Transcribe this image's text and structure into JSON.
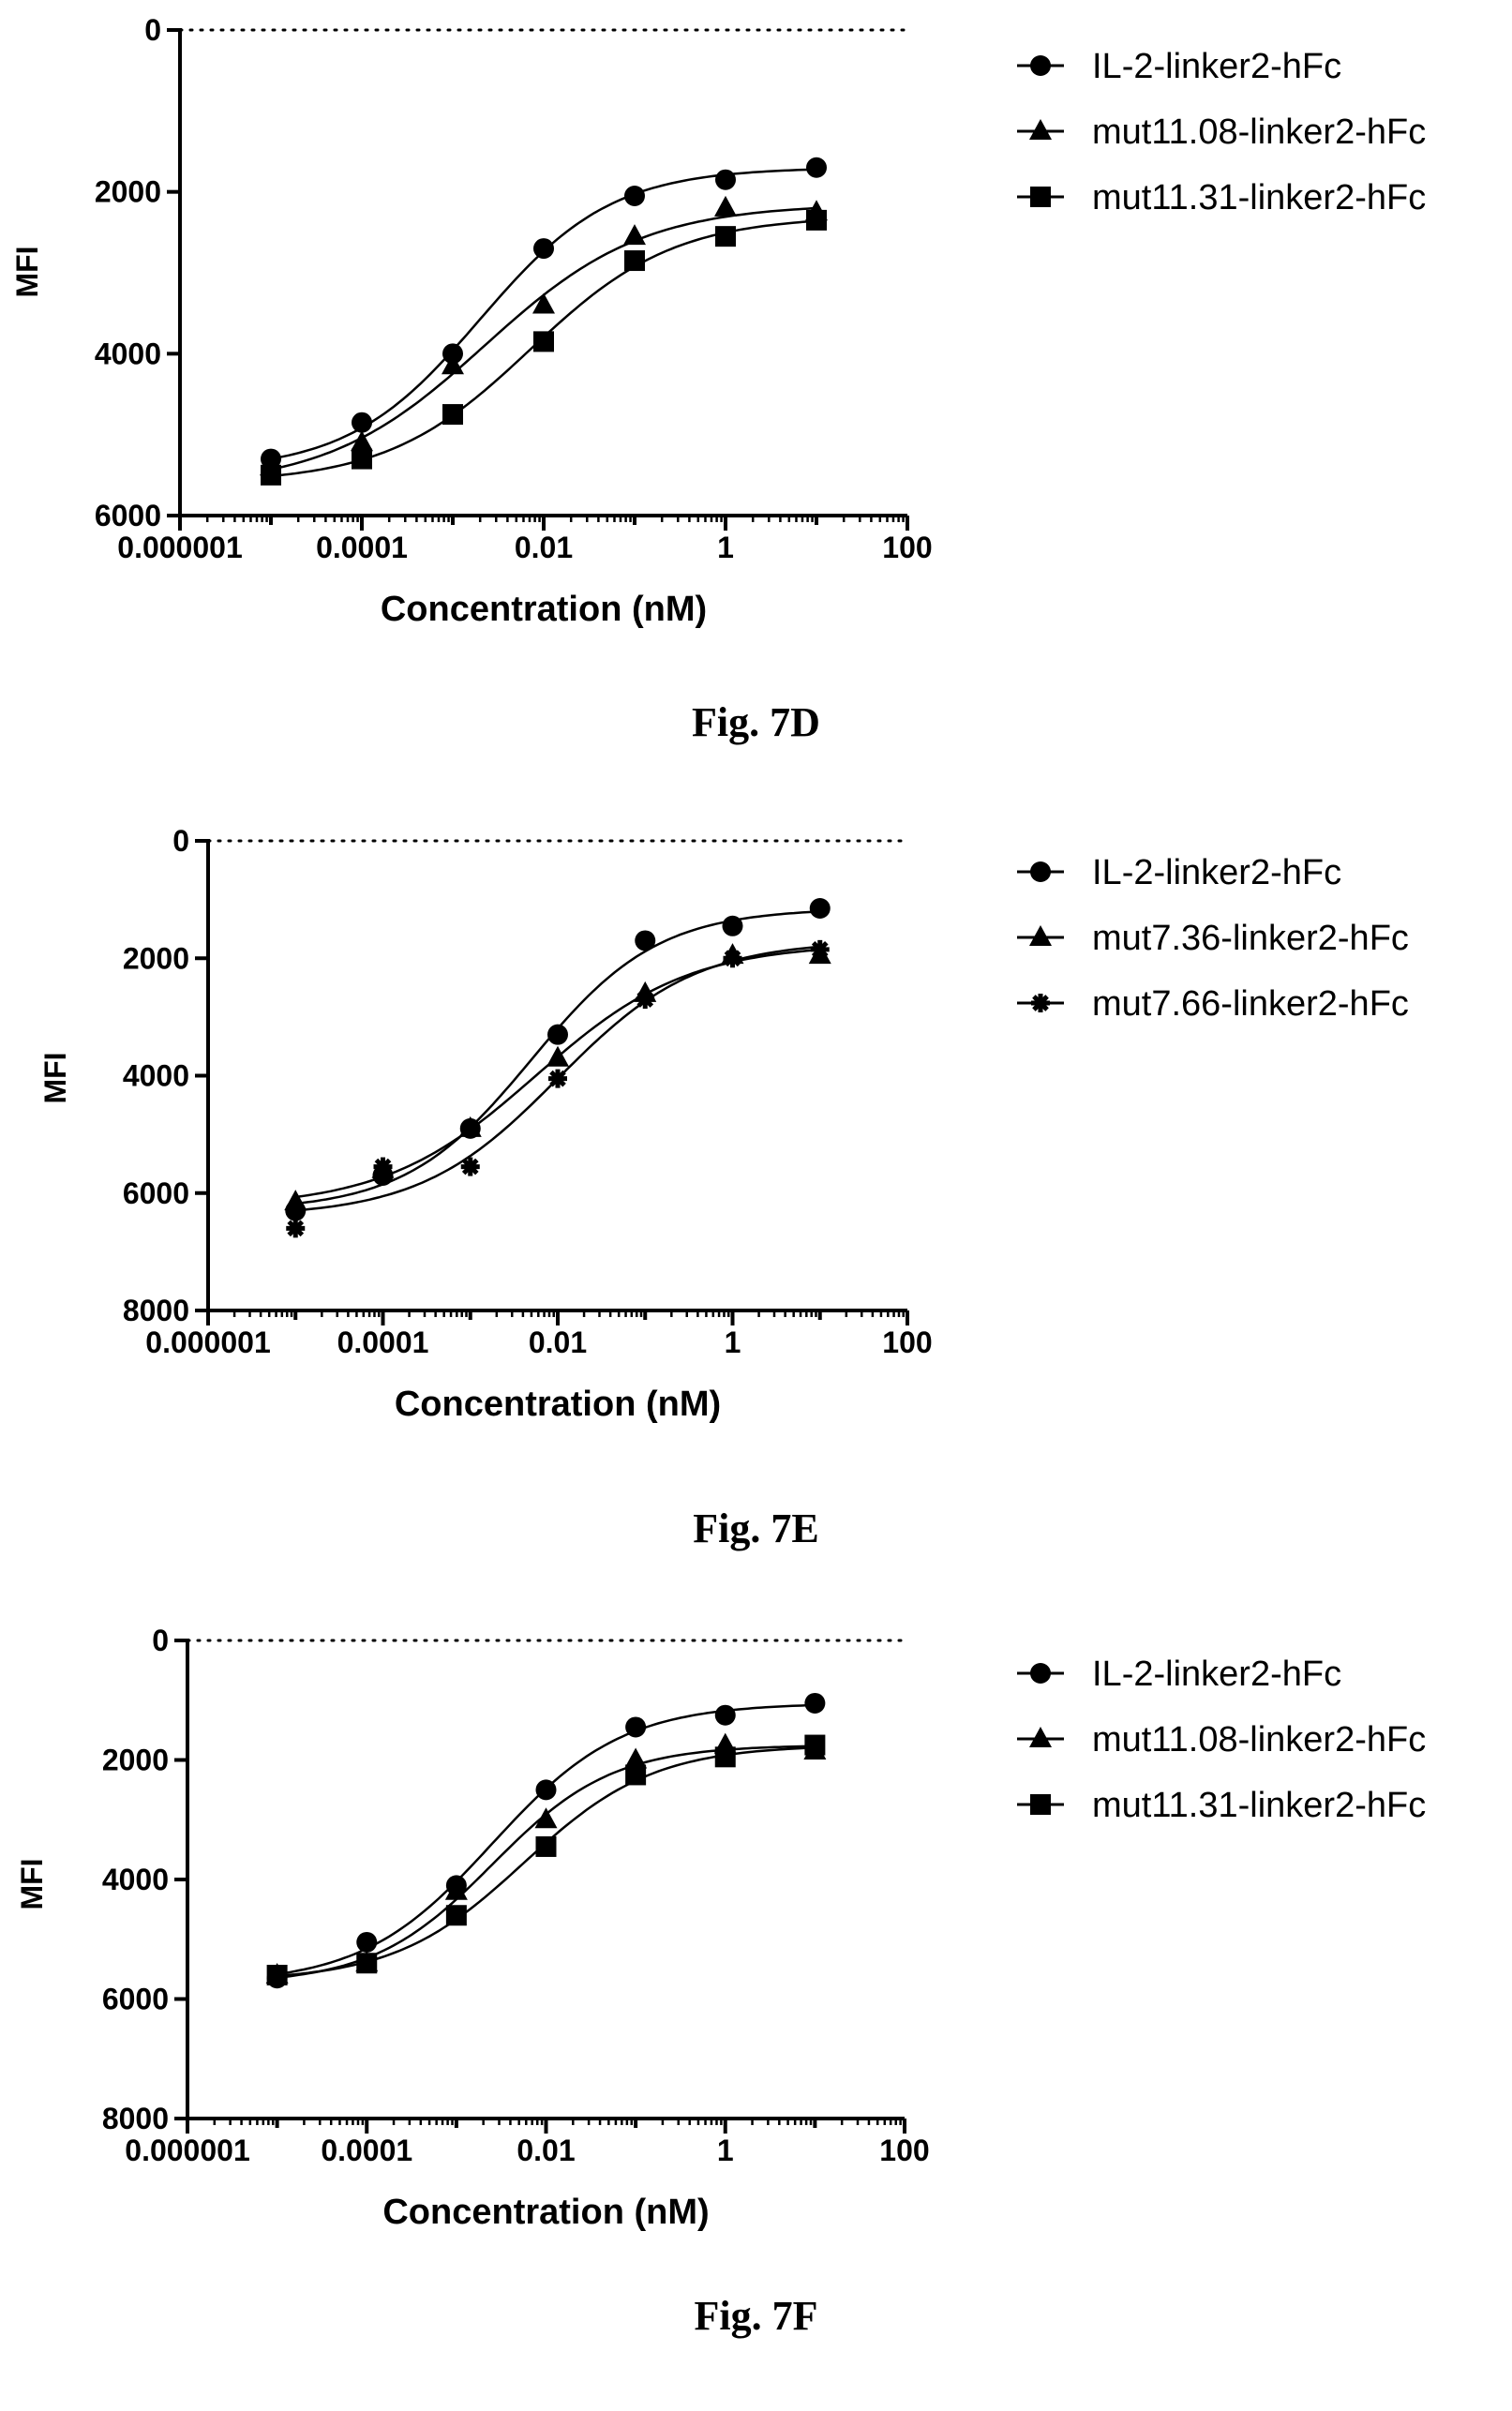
{
  "figures": [
    {
      "caption": "Fig. 7D",
      "chart_data": {
        "type": "scatter",
        "xlabel": "Concentration (nM)",
        "ylabel": "MFI",
        "xscale": "log",
        "xlim": [
          1e-06,
          100
        ],
        "ylim": [
          0,
          6000
        ],
        "yreversed": true,
        "x_ticks": [
          "0.000001",
          "0.0001",
          "0.01",
          "1",
          "100"
        ],
        "y_ticks": [
          "0",
          "2000",
          "4000",
          "6000"
        ],
        "legend": "right",
        "series": [
          {
            "name": "IL-2-linker2-hFc",
            "marker": "circle",
            "x": [
              1e-05,
              0.0001,
              0.001,
              0.01,
              0.1,
              1,
              10
            ],
            "y": [
              5300,
              4850,
              4000,
              2700,
              2050,
              1850,
              1700
            ]
          },
          {
            "name": "mut11.08-linker2-hFc",
            "marker": "triangle",
            "x": [
              1e-05,
              0.0001,
              0.001,
              0.01,
              0.1,
              1,
              10
            ],
            "y": [
              5400,
              5100,
              4150,
              3400,
              2550,
              2200,
              2250
            ]
          },
          {
            "name": "mut11.31-linker2-hFc",
            "marker": "square",
            "x": [
              1e-05,
              0.0001,
              0.001,
              0.01,
              0.1,
              1,
              10
            ],
            "y": [
              5500,
              5300,
              4750,
              3850,
              2850,
              2550,
              2350
            ]
          }
        ]
      }
    },
    {
      "caption": "Fig. 7E",
      "chart_data": {
        "type": "scatter",
        "xlabel": "Concentration (nM)",
        "ylabel": "MFI",
        "xscale": "log",
        "xlim": [
          1e-06,
          100
        ],
        "ylim": [
          0,
          8000
        ],
        "yreversed": true,
        "x_ticks": [
          "0.000001",
          "0.0001",
          "0.01",
          "1",
          "100"
        ],
        "y_ticks": [
          "0",
          "2000",
          "4000",
          "6000",
          "8000"
        ],
        "legend": "right",
        "series": [
          {
            "name": "IL-2-linker2-hFc",
            "marker": "circle",
            "x": [
              1e-05,
              0.0001,
              0.001,
              0.01,
              0.1,
              1,
              10
            ],
            "y": [
              6300,
              5700,
              4900,
              3300,
              1700,
              1450,
              1150
            ]
          },
          {
            "name": "mut7.36-linker2-hFc",
            "marker": "triangle",
            "x": [
              1e-05,
              0.0001,
              0.001,
              0.01,
              0.1,
              1,
              10
            ],
            "y": [
              6150,
              5600,
              4900,
              3700,
              2600,
              1950,
              1950
            ]
          },
          {
            "name": "mut7.66-linker2-hFc",
            "marker": "asterisk",
            "x": [
              1e-05,
              0.0001,
              0.001,
              0.01,
              0.1,
              1,
              10
            ],
            "y": [
              6600,
              5550,
              5550,
              4050,
              2700,
              2000,
              1850
            ]
          }
        ]
      }
    },
    {
      "caption": "Fig. 7F",
      "chart_data": {
        "type": "scatter",
        "xlabel": "Concentration (nM)",
        "ylabel": "MFI",
        "xscale": "log",
        "xlim": [
          1e-06,
          100
        ],
        "ylim": [
          0,
          8000
        ],
        "yreversed": true,
        "x_ticks": [
          "0.000001",
          "0.0001",
          "0.01",
          "1",
          "100"
        ],
        "y_ticks": [
          "0",
          "2000",
          "4000",
          "6000",
          "8000"
        ],
        "legend": "right",
        "series": [
          {
            "name": "IL-2-linker2-hFc",
            "marker": "circle",
            "x": [
              1e-05,
              0.0001,
              0.001,
              0.01,
              0.1,
              1,
              10
            ],
            "y": [
              5650,
              5050,
              4100,
              2500,
              1450,
              1250,
              1050
            ]
          },
          {
            "name": "mut11.08-linker2-hFc",
            "marker": "triangle",
            "x": [
              1e-05,
              0.0001,
              0.001,
              0.01,
              0.1,
              1,
              10
            ],
            "y": [
              5600,
              5400,
              4200,
              3000,
              2000,
              1750,
              1850
            ]
          },
          {
            "name": "mut11.31-linker2-hFc",
            "marker": "square",
            "x": [
              1e-05,
              0.0001,
              0.001,
              0.01,
              0.1,
              1,
              10
            ],
            "y": [
              5600,
              5400,
              4600,
              3450,
              2250,
              1950,
              1750
            ]
          }
        ]
      }
    }
  ]
}
